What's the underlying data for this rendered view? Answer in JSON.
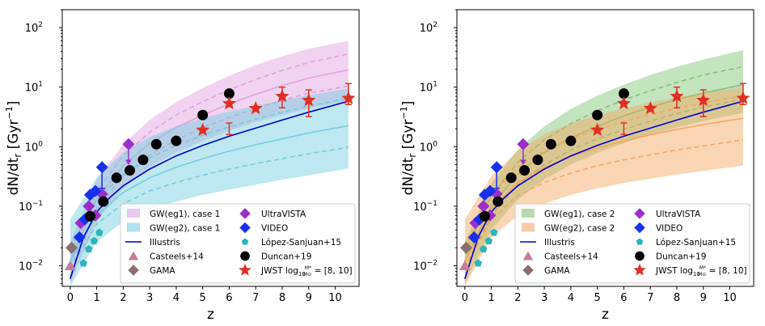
{
  "colors": {
    "illustris": "#0000cc",
    "ultravista": "#9b2fc9",
    "video": "#1730ee",
    "lopez": "#2bb5bd",
    "duncan": "#000000",
    "jwst": "#e03024",
    "casteels": "#c87a96",
    "gama": "#8c6e6e",
    "eg1_case1": "#de9ddc",
    "eg2_case1": "#6dcbdc",
    "eg1_case2": "#7cc070",
    "eg2_case2": "#f5a35c"
  },
  "chart_data": [
    {
      "type": "line",
      "panel": "left",
      "xlabel": "z",
      "ylabel": "dN/dt",
      "ylabel_sub": "r",
      "ylabel_unit_open": " [Gyr",
      "ylabel_unit_exp": "−1",
      "ylabel_unit_close": "]",
      "xlim": [
        -0.3,
        10.9
      ],
      "ylim": [
        0.0045,
        200
      ],
      "yscale": "log",
      "x_ticks": [
        0,
        1,
        2,
        3,
        4,
        5,
        6,
        7,
        8,
        9,
        10
      ],
      "x_tick_labels": [
        "0",
        "1",
        "2",
        "3",
        "4",
        "5",
        "6",
        "7",
        "8",
        "9",
        "10"
      ],
      "y_ticks": [
        0.01,
        0.1,
        1,
        10,
        100
      ],
      "y_tick_base": "10",
      "y_tick_exps": [
        "−2",
        "−1",
        "0",
        "1",
        "2"
      ],
      "legend_position": "lower-right",
      "bands": [
        {
          "name": "GW(eg1), case 1",
          "color_key": "eg1_case1",
          "x": [
            0,
            1,
            2,
            3,
            4,
            5,
            6,
            7,
            8,
            9,
            10.5
          ],
          "mid": [
            0.012,
            0.13,
            0.48,
            1.15,
            2.1,
            3.4,
            5.2,
            7.6,
            10.6,
            14.2,
            19.5
          ],
          "inner_low": [
            0.009,
            0.09,
            0.32,
            0.72,
            1.3,
            2.1,
            3.1,
            4.4,
            6.0,
            7.9,
            10.5
          ],
          "inner_high": [
            0.016,
            0.18,
            0.7,
            1.75,
            3.4,
            5.7,
            9.0,
            13.5,
            19.0,
            26,
            36
          ],
          "outer_low": [
            0.005,
            0.055,
            0.2,
            0.45,
            0.8,
            1.25,
            1.85,
            2.6,
            3.4,
            4.4,
            5.8
          ],
          "outer_high": [
            0.025,
            0.28,
            1.1,
            2.8,
            5.6,
            9.7,
            15.5,
            23.5,
            33,
            44,
            60
          ]
        },
        {
          "name": "GW(eg2), case 1",
          "color_key": "eg2_case1",
          "x": [
            0,
            1,
            2,
            3,
            4,
            5,
            6,
            7,
            8,
            9,
            10.5
          ],
          "mid": [
            0.012,
            0.07,
            0.17,
            0.3,
            0.45,
            0.63,
            0.84,
            1.08,
            1.35,
            1.7,
            2.25
          ],
          "inner_low": [
            0.009,
            0.05,
            0.11,
            0.18,
            0.25,
            0.33,
            0.42,
            0.52,
            0.63,
            0.76,
            0.98
          ],
          "inner_high": [
            0.02,
            0.13,
            0.34,
            0.65,
            1.05,
            1.55,
            2.15,
            2.9,
            3.8,
            4.8,
            6.5
          ],
          "outer_low": [
            0.0045,
            0.025,
            0.055,
            0.088,
            0.12,
            0.155,
            0.19,
            0.23,
            0.28,
            0.33,
            0.43
          ],
          "outer_high": [
            0.06,
            0.3,
            0.8,
            1.45,
            2.2,
            3.0,
            3.9,
            4.9,
            6.0,
            7.3,
            9.5
          ]
        }
      ],
      "series": [
        {
          "name": "Illustris",
          "color_key": "illustris",
          "style": "line",
          "x": [
            0,
            0.5,
            1,
            1.5,
            2,
            3,
            4,
            5,
            6,
            7,
            8,
            9,
            10.5
          ],
          "y": [
            0.006,
            0.03,
            0.08,
            0.14,
            0.22,
            0.42,
            0.7,
            1.05,
            1.5,
            2.05,
            2.8,
            3.8,
            5.8
          ]
        },
        {
          "name": "Casteels+14",
          "color_key": "casteels",
          "marker": "triangle",
          "x": [
            0.0
          ],
          "y": [
            0.01
          ]
        },
        {
          "name": "GAMA",
          "color_key": "gama",
          "marker": "diamond",
          "x": [
            0.05
          ],
          "y": [
            0.02
          ]
        },
        {
          "name": "UltraVISTA",
          "color_key": "ultravista",
          "marker": "diamond",
          "x": [
            0.4,
            0.7,
            0.95,
            1.2,
            2.2
          ],
          "y": [
            0.052,
            0.1,
            0.07,
            0.16,
            1.1
          ],
          "upper_limit_index": 4,
          "upper_limit_to": 0.5
        },
        {
          "name": "VIDEO",
          "color_key": "video",
          "marker": "diamond",
          "x": [
            0.35,
            0.55,
            0.75,
            0.95,
            1.2
          ],
          "y": [
            0.03,
            0.06,
            0.155,
            0.18,
            0.45
          ],
          "err_low": [
            0,
            0,
            0,
            0,
            0.2
          ],
          "err_high": [
            0,
            0,
            0,
            0,
            0.45
          ]
        },
        {
          "name": "López-Sanjuan+15",
          "color_key": "lopez",
          "marker": "pentagon",
          "x": [
            0.5,
            0.7,
            0.9,
            1.1
          ],
          "y": [
            0.011,
            0.019,
            0.026,
            0.036
          ]
        },
        {
          "name": "Duncan+19",
          "color_key": "duncan",
          "marker": "circle",
          "x": [
            0.75,
            1.25,
            1.75,
            2.25,
            2.75,
            3.25,
            4.0,
            5.0,
            6.0
          ],
          "y": [
            0.068,
            0.12,
            0.3,
            0.4,
            0.6,
            1.1,
            1.25,
            3.4,
            7.8
          ]
        },
        {
          "name": "JWST",
          "color_key": "jwst",
          "marker": "star",
          "x": [
            5,
            6,
            7,
            8,
            9,
            10.5
          ],
          "y": [
            1.9,
            5.3,
            4.4,
            7.0,
            6.0,
            6.5
          ],
          "err_low": [
            0,
            1.6,
            0,
            4.5,
            3.2,
            5.1
          ],
          "err_high": [
            0,
            2.5,
            0,
            10.0,
            9.0,
            11.5
          ]
        }
      ],
      "legend": [
        {
          "label": "GW(eg1), case 1",
          "kind": "patch",
          "color_key": "eg1_case1"
        },
        {
          "label": "GW(eg2), case 1",
          "kind": "patch",
          "color_key": "eg2_case1"
        },
        {
          "label": "Illustris",
          "kind": "line",
          "color_key": "illustris"
        },
        {
          "label": "Casteels+14",
          "kind": "triangle",
          "color_key": "casteels"
        },
        {
          "label": "GAMA",
          "kind": "diamond",
          "color_key": "gama"
        },
        {
          "label": "UltraVISTA",
          "kind": "diamond",
          "color_key": "ultravista"
        },
        {
          "label": "VIDEO",
          "kind": "diamond",
          "color_key": "video"
        },
        {
          "label": "López-Sanjuan+15",
          "kind": "pentagon",
          "color_key": "lopez"
        },
        {
          "label": "Duncan+19",
          "kind": "circle",
          "color_key": "duncan"
        },
        {
          "label": "JWST log",
          "label_sub": "10",
          "label_frac_num": "M*",
          "label_frac_den": "M⊙",
          "label_tail": " = [8, 10]",
          "kind": "star",
          "color_key": "jwst"
        }
      ]
    },
    {
      "type": "line",
      "panel": "right",
      "xlabel": "z",
      "ylabel": "dN/dt",
      "ylabel_sub": "r",
      "ylabel_unit_open": " [Gyr",
      "ylabel_unit_exp": "−1",
      "ylabel_unit_close": "]",
      "xlim": [
        -0.3,
        10.9
      ],
      "ylim": [
        0.0045,
        200
      ],
      "yscale": "log",
      "x_ticks": [
        0,
        1,
        2,
        3,
        4,
        5,
        6,
        7,
        8,
        9,
        10
      ],
      "x_tick_labels": [
        "0",
        "1",
        "2",
        "3",
        "4",
        "5",
        "6",
        "7",
        "8",
        "9",
        "10"
      ],
      "y_ticks": [
        0.01,
        0.1,
        1,
        10,
        100
      ],
      "y_tick_base": "10",
      "y_tick_exps": [
        "−2",
        "−1",
        "0",
        "1",
        "2"
      ],
      "legend_position": "lower-right",
      "bands": [
        {
          "name": "GW(eg1), case 2",
          "color_key": "eg1_case2",
          "x": [
            0,
            1,
            2,
            3,
            4,
            5,
            6,
            7,
            8,
            9,
            10.5
          ],
          "mid": [
            0.012,
            0.1,
            0.35,
            0.8,
            1.4,
            2.2,
            3.3,
            4.6,
            6.2,
            8.0,
            11.0
          ],
          "inner_low": [
            0.009,
            0.07,
            0.23,
            0.5,
            0.88,
            1.35,
            1.95,
            2.7,
            3.6,
            4.6,
            6.3
          ],
          "inner_high": [
            0.016,
            0.15,
            0.55,
            1.3,
            2.45,
            4.0,
            6.1,
            8.7,
            12,
            16,
            22
          ],
          "outer_low": [
            0.005,
            0.04,
            0.13,
            0.28,
            0.5,
            0.78,
            1.15,
            1.6,
            2.1,
            2.7,
            3.7
          ],
          "outer_high": [
            0.025,
            0.24,
            0.9,
            2.2,
            4.3,
            7.2,
            11.0,
            16,
            22,
            29,
            42
          ]
        },
        {
          "name": "GW(eg2), case 2",
          "color_key": "eg2_case2",
          "x": [
            0,
            1,
            2,
            3,
            4,
            5,
            6,
            7,
            8,
            9,
            10.5
          ],
          "mid": [
            0.012,
            0.09,
            0.25,
            0.45,
            0.68,
            0.95,
            1.25,
            1.58,
            1.95,
            2.35,
            3.0
          ],
          "inner_low": [
            0.009,
            0.06,
            0.15,
            0.25,
            0.36,
            0.48,
            0.6,
            0.73,
            0.88,
            1.03,
            1.3
          ],
          "inner_high": [
            0.02,
            0.16,
            0.45,
            0.85,
            1.35,
            1.95,
            2.65,
            3.45,
            4.4,
            5.4,
            7.2
          ],
          "outer_low": [
            0.0045,
            0.03,
            0.07,
            0.11,
            0.155,
            0.2,
            0.245,
            0.29,
            0.34,
            0.39,
            0.48
          ],
          "outer_high": [
            0.06,
            0.32,
            0.85,
            1.6,
            2.45,
            3.4,
            4.4,
            5.5,
            6.7,
            8.0,
            10.0
          ]
        }
      ],
      "series": [
        {
          "name": "Illustris",
          "color_key": "illustris",
          "style": "line",
          "x": [
            0,
            0.5,
            1,
            1.5,
            2,
            3,
            4,
            5,
            6,
            7,
            8,
            9,
            10.5
          ],
          "y": [
            0.006,
            0.03,
            0.08,
            0.14,
            0.22,
            0.42,
            0.7,
            1.05,
            1.5,
            2.05,
            2.8,
            3.8,
            5.8
          ]
        },
        {
          "name": "Casteels+14",
          "color_key": "casteels",
          "marker": "triangle",
          "x": [
            0.0
          ],
          "y": [
            0.01
          ]
        },
        {
          "name": "GAMA",
          "color_key": "gama",
          "marker": "diamond",
          "x": [
            0.05
          ],
          "y": [
            0.02
          ]
        },
        {
          "name": "UltraVISTA",
          "color_key": "ultravista",
          "marker": "diamond",
          "x": [
            0.4,
            0.7,
            0.95,
            1.2,
            2.2
          ],
          "y": [
            0.052,
            0.1,
            0.07,
            0.16,
            1.1
          ],
          "upper_limit_index": 4,
          "upper_limit_to": 0.5
        },
        {
          "name": "VIDEO",
          "color_key": "video",
          "marker": "diamond",
          "x": [
            0.35,
            0.55,
            0.75,
            0.95,
            1.2
          ],
          "y": [
            0.03,
            0.06,
            0.155,
            0.18,
            0.45
          ],
          "err_low": [
            0,
            0,
            0,
            0,
            0.2
          ],
          "err_high": [
            0,
            0,
            0,
            0,
            0.45
          ]
        },
        {
          "name": "López-Sanjuan+15",
          "color_key": "lopez",
          "marker": "pentagon",
          "x": [
            0.5,
            0.7,
            0.9,
            1.1
          ],
          "y": [
            0.011,
            0.019,
            0.026,
            0.036
          ]
        },
        {
          "name": "Duncan+19",
          "color_key": "duncan",
          "marker": "circle",
          "x": [
            0.75,
            1.25,
            1.75,
            2.25,
            2.75,
            3.25,
            4.0,
            5.0,
            6.0
          ],
          "y": [
            0.068,
            0.12,
            0.3,
            0.4,
            0.6,
            1.1,
            1.25,
            3.4,
            7.8
          ]
        },
        {
          "name": "JWST",
          "color_key": "jwst",
          "marker": "star",
          "x": [
            5,
            6,
            7,
            8,
            9,
            10.5
          ],
          "y": [
            1.9,
            5.3,
            4.4,
            7.0,
            6.0,
            6.5
          ],
          "err_low": [
            0,
            1.6,
            0,
            4.5,
            3.2,
            5.1
          ],
          "err_high": [
            0,
            2.5,
            0,
            10.0,
            9.0,
            11.5
          ]
        }
      ],
      "legend": [
        {
          "label": "GW(eg1), case 2",
          "kind": "patch",
          "color_key": "eg1_case2"
        },
        {
          "label": "GW(eg2), case 2",
          "kind": "patch",
          "color_key": "eg2_case2"
        },
        {
          "label": "Illustris",
          "kind": "line",
          "color_key": "illustris"
        },
        {
          "label": "Casteels+14",
          "kind": "triangle",
          "color_key": "casteels"
        },
        {
          "label": "GAMA",
          "kind": "diamond",
          "color_key": "gama"
        },
        {
          "label": "UltraVISTA",
          "kind": "diamond",
          "color_key": "ultravista"
        },
        {
          "label": "VIDEO",
          "kind": "diamond",
          "color_key": "video"
        },
        {
          "label": "López-Sanjuan+15",
          "kind": "pentagon",
          "color_key": "lopez"
        },
        {
          "label": "Duncan+19",
          "kind": "circle",
          "color_key": "duncan"
        },
        {
          "label": "JWST log",
          "label_sub": "10",
          "label_frac_num": "M*",
          "label_frac_den": "M⊙",
          "label_tail": " = [8, 10]",
          "kind": "star",
          "color_key": "jwst"
        }
      ]
    }
  ]
}
